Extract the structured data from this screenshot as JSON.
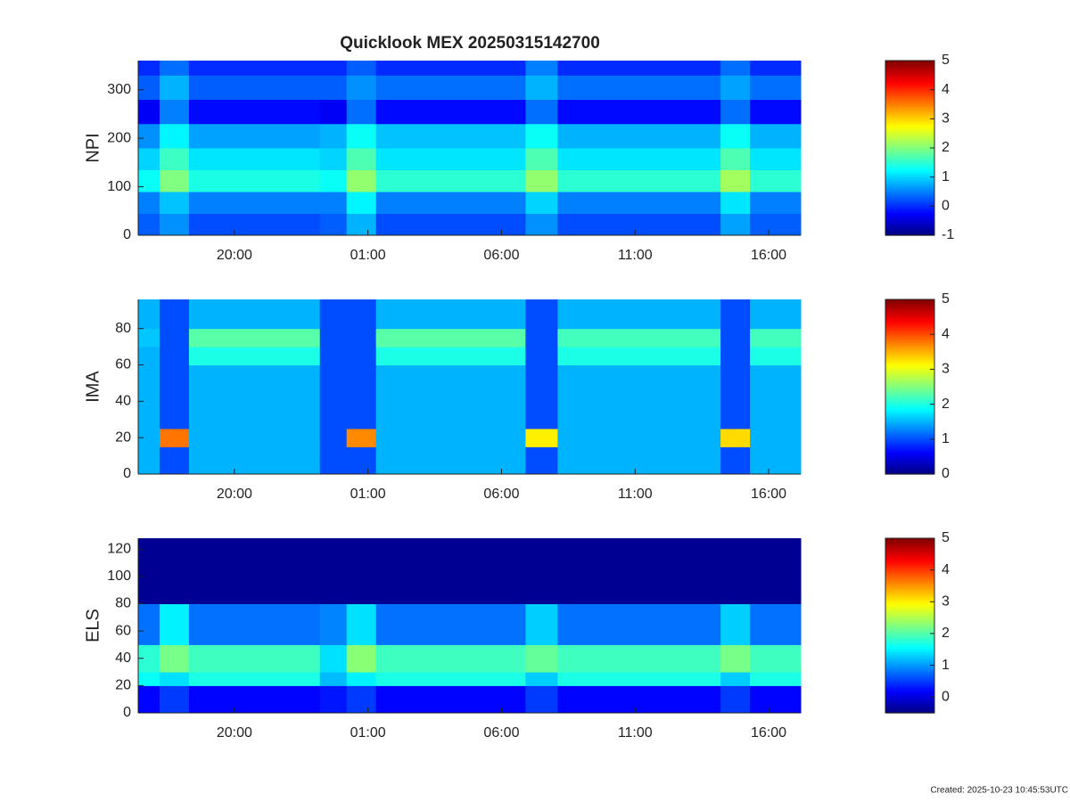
{
  "title": "Quicklook MEX 20250315142700",
  "footer": "Created: 2025-10-23 10:45:53UTC",
  "chart_data": [
    {
      "type": "heatmap",
      "ylabel": "NPI",
      "colormap": "jet",
      "xlim": [
        16.4,
        41.2
      ],
      "xticks": [
        {
          "value": 20,
          "label": "20:00"
        },
        {
          "value": 25,
          "label": "01:00"
        },
        {
          "value": 30,
          "label": "06:00"
        },
        {
          "value": 35,
          "label": "11:00"
        },
        {
          "value": 40,
          "label": "16:00"
        }
      ],
      "ylim": [
        0,
        360
      ],
      "yticks": [
        0,
        100,
        200,
        300
      ],
      "xbins": [
        16.4,
        17.2,
        18.3,
        23.2,
        24.2,
        25.3,
        30.9,
        32.1,
        38.2,
        39.3,
        41.2
      ],
      "ybins": [
        0,
        45,
        90,
        135,
        180,
        230,
        280,
        330,
        360
      ],
      "values": [
        [
          0.3,
          0.6,
          0.2,
          0.3,
          0.8,
          0.2,
          0.6,
          0.2,
          0.7,
          0.3
        ],
        [
          0.5,
          0.9,
          0.5,
          0.5,
          1.2,
          0.5,
          1.0,
          0.5,
          1.1,
          0.5
        ],
        [
          1.3,
          2.0,
          1.4,
          1.3,
          2.1,
          1.5,
          2.1,
          1.5,
          2.2,
          1.5
        ],
        [
          1.0,
          1.6,
          1.1,
          1.0,
          1.7,
          1.1,
          1.7,
          1.1,
          1.7,
          1.1
        ],
        [
          0.6,
          1.2,
          0.7,
          0.8,
          1.3,
          0.9,
          1.3,
          0.8,
          1.3,
          0.8
        ],
        [
          -0.3,
          0.5,
          -0.2,
          -0.3,
          0.4,
          -0.2,
          0.4,
          -0.2,
          0.4,
          -0.2
        ],
        [
          0.3,
          0.8,
          0.3,
          0.3,
          0.6,
          0.4,
          0.8,
          0.4,
          0.7,
          0.4
        ],
        [
          0,
          0.4,
          0,
          0,
          0.3,
          0,
          0.5,
          0,
          0.4,
          0
        ]
      ],
      "clim": [
        -1,
        5
      ],
      "cticks": [
        -1,
        0,
        1,
        2,
        3,
        4,
        5
      ]
    },
    {
      "type": "heatmap",
      "ylabel": "IMA",
      "colormap": "jet",
      "xlim": [
        16.4,
        41.2
      ],
      "xticks": [
        {
          "value": 20,
          "label": "20:00"
        },
        {
          "value": 25,
          "label": "01:00"
        },
        {
          "value": 30,
          "label": "06:00"
        },
        {
          "value": 35,
          "label": "11:00"
        },
        {
          "value": 40,
          "label": "16:00"
        }
      ],
      "ylim": [
        0,
        96
      ],
      "yticks": [
        0,
        20,
        40,
        60,
        80
      ],
      "xbins": [
        16.4,
        17.2,
        18.3,
        23.2,
        24.2,
        25.3,
        30.9,
        32.1,
        38.2,
        39.3,
        41.2
      ],
      "ybins": [
        0,
        15,
        25,
        60,
        70,
        80,
        96
      ],
      "values": [
        [
          1.5,
          1.0,
          1.5,
          1.0,
          1.0,
          1.5,
          1.0,
          1.5,
          1.0,
          1.5
        ],
        [
          1.5,
          3.8,
          1.5,
          1.0,
          3.7,
          1.5,
          3.2,
          1.5,
          3.3,
          1.5
        ],
        [
          1.5,
          1.0,
          1.5,
          1.0,
          1.0,
          1.5,
          1.0,
          1.5,
          1.0,
          1.5
        ],
        [
          1.5,
          1.0,
          2.0,
          1.0,
          1.0,
          2.0,
          1.0,
          2.0,
          1.0,
          2.0
        ],
        [
          1.6,
          1.0,
          2.3,
          1.0,
          1.0,
          2.3,
          1.0,
          2.2,
          1.0,
          2.2
        ],
        [
          1.5,
          1.0,
          1.5,
          1.0,
          1.0,
          1.5,
          1.0,
          1.5,
          1.0,
          1.5
        ]
      ],
      "clim": [
        0,
        5
      ],
      "cticks": [
        0,
        1,
        2,
        3,
        4,
        5
      ]
    },
    {
      "type": "heatmap",
      "ylabel": "ELS",
      "colormap": "jet",
      "xlim": [
        16.4,
        41.2
      ],
      "xticks": [
        {
          "value": 20,
          "label": "20:00"
        },
        {
          "value": 25,
          "label": "01:00"
        },
        {
          "value": 30,
          "label": "06:00"
        },
        {
          "value": 35,
          "label": "11:00"
        },
        {
          "value": 40,
          "label": "16:00"
        }
      ],
      "ylim": [
        0,
        128
      ],
      "yticks": [
        0,
        20,
        40,
        60,
        80,
        100,
        120
      ],
      "xbins": [
        16.4,
        17.2,
        18.3,
        23.2,
        24.2,
        25.3,
        30.9,
        32.1,
        38.2,
        39.3,
        41.2
      ],
      "ybins": [
        0,
        20,
        30,
        50,
        80,
        128
      ],
      "values": [
        [
          0.2,
          0.5,
          0.2,
          0.3,
          0.5,
          0.2,
          0.5,
          0.2,
          0.5,
          0.2
        ],
        [
          1.6,
          1.4,
          1.7,
          1.2,
          1.5,
          1.7,
          1.3,
          1.7,
          1.3,
          1.7
        ],
        [
          1.8,
          2.2,
          1.9,
          1.4,
          2.3,
          1.9,
          2.1,
          1.9,
          2.2,
          1.9
        ],
        [
          0.8,
          1.5,
          0.8,
          0.9,
          1.4,
          0.8,
          1.3,
          0.8,
          1.3,
          0.8
        ],
        [
          -0.4,
          -0.4,
          -0.4,
          -0.4,
          -0.4,
          -0.4,
          -0.4,
          -0.4,
          -0.4,
          -0.4
        ]
      ],
      "clim": [
        -0.5,
        5
      ],
      "cticks": [
        0,
        1,
        2,
        3,
        4,
        5
      ]
    }
  ]
}
